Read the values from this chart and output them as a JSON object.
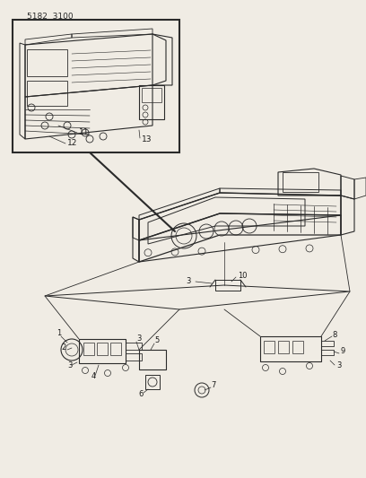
{
  "title": "5182  3100",
  "bg_color": "#f0ece4",
  "line_color": "#2a2a2a",
  "text_color": "#1a1a1a",
  "fig_width": 4.08,
  "fig_height": 5.33,
  "dpi": 100
}
